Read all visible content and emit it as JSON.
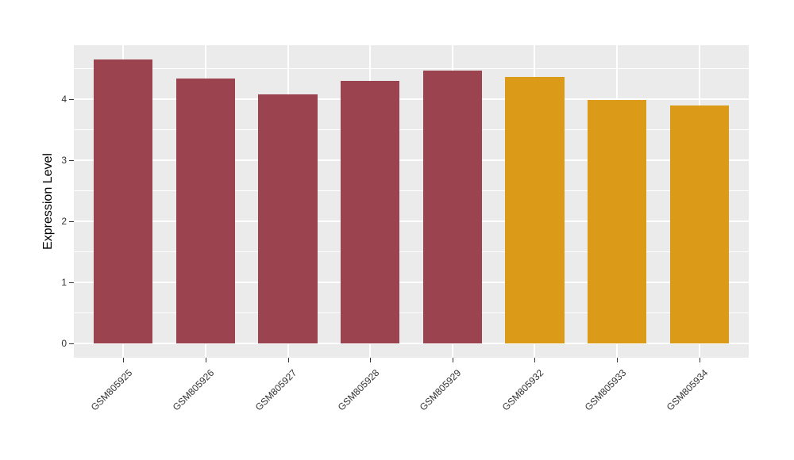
{
  "chart_data": {
    "type": "bar",
    "title": "",
    "xlabel": "",
    "ylabel": "Expression Level",
    "categories": [
      "GSM805925",
      "GSM805926",
      "GSM805927",
      "GSM805928",
      "GSM805929",
      "GSM805932",
      "GSM805933",
      "GSM805934"
    ],
    "values": [
      4.65,
      4.34,
      4.07,
      4.29,
      4.46,
      4.36,
      3.99,
      3.9
    ],
    "bar_colors": [
      "#9b4450",
      "#9b4450",
      "#9b4450",
      "#9b4450",
      "#9b4450",
      "#db9a17",
      "#db9a17",
      "#db9a17"
    ],
    "group_colors": {
      "maroon_group": "#9b4450",
      "orange_group": "#db9a17"
    },
    "yticks": [
      0,
      1,
      2,
      3,
      4
    ],
    "ylim": [
      -0.23,
      4.88
    ],
    "grid": true,
    "legend": "none",
    "panel_background": "#ebebeb",
    "grid_color": "#ffffff",
    "tick_color": "#333333"
  }
}
